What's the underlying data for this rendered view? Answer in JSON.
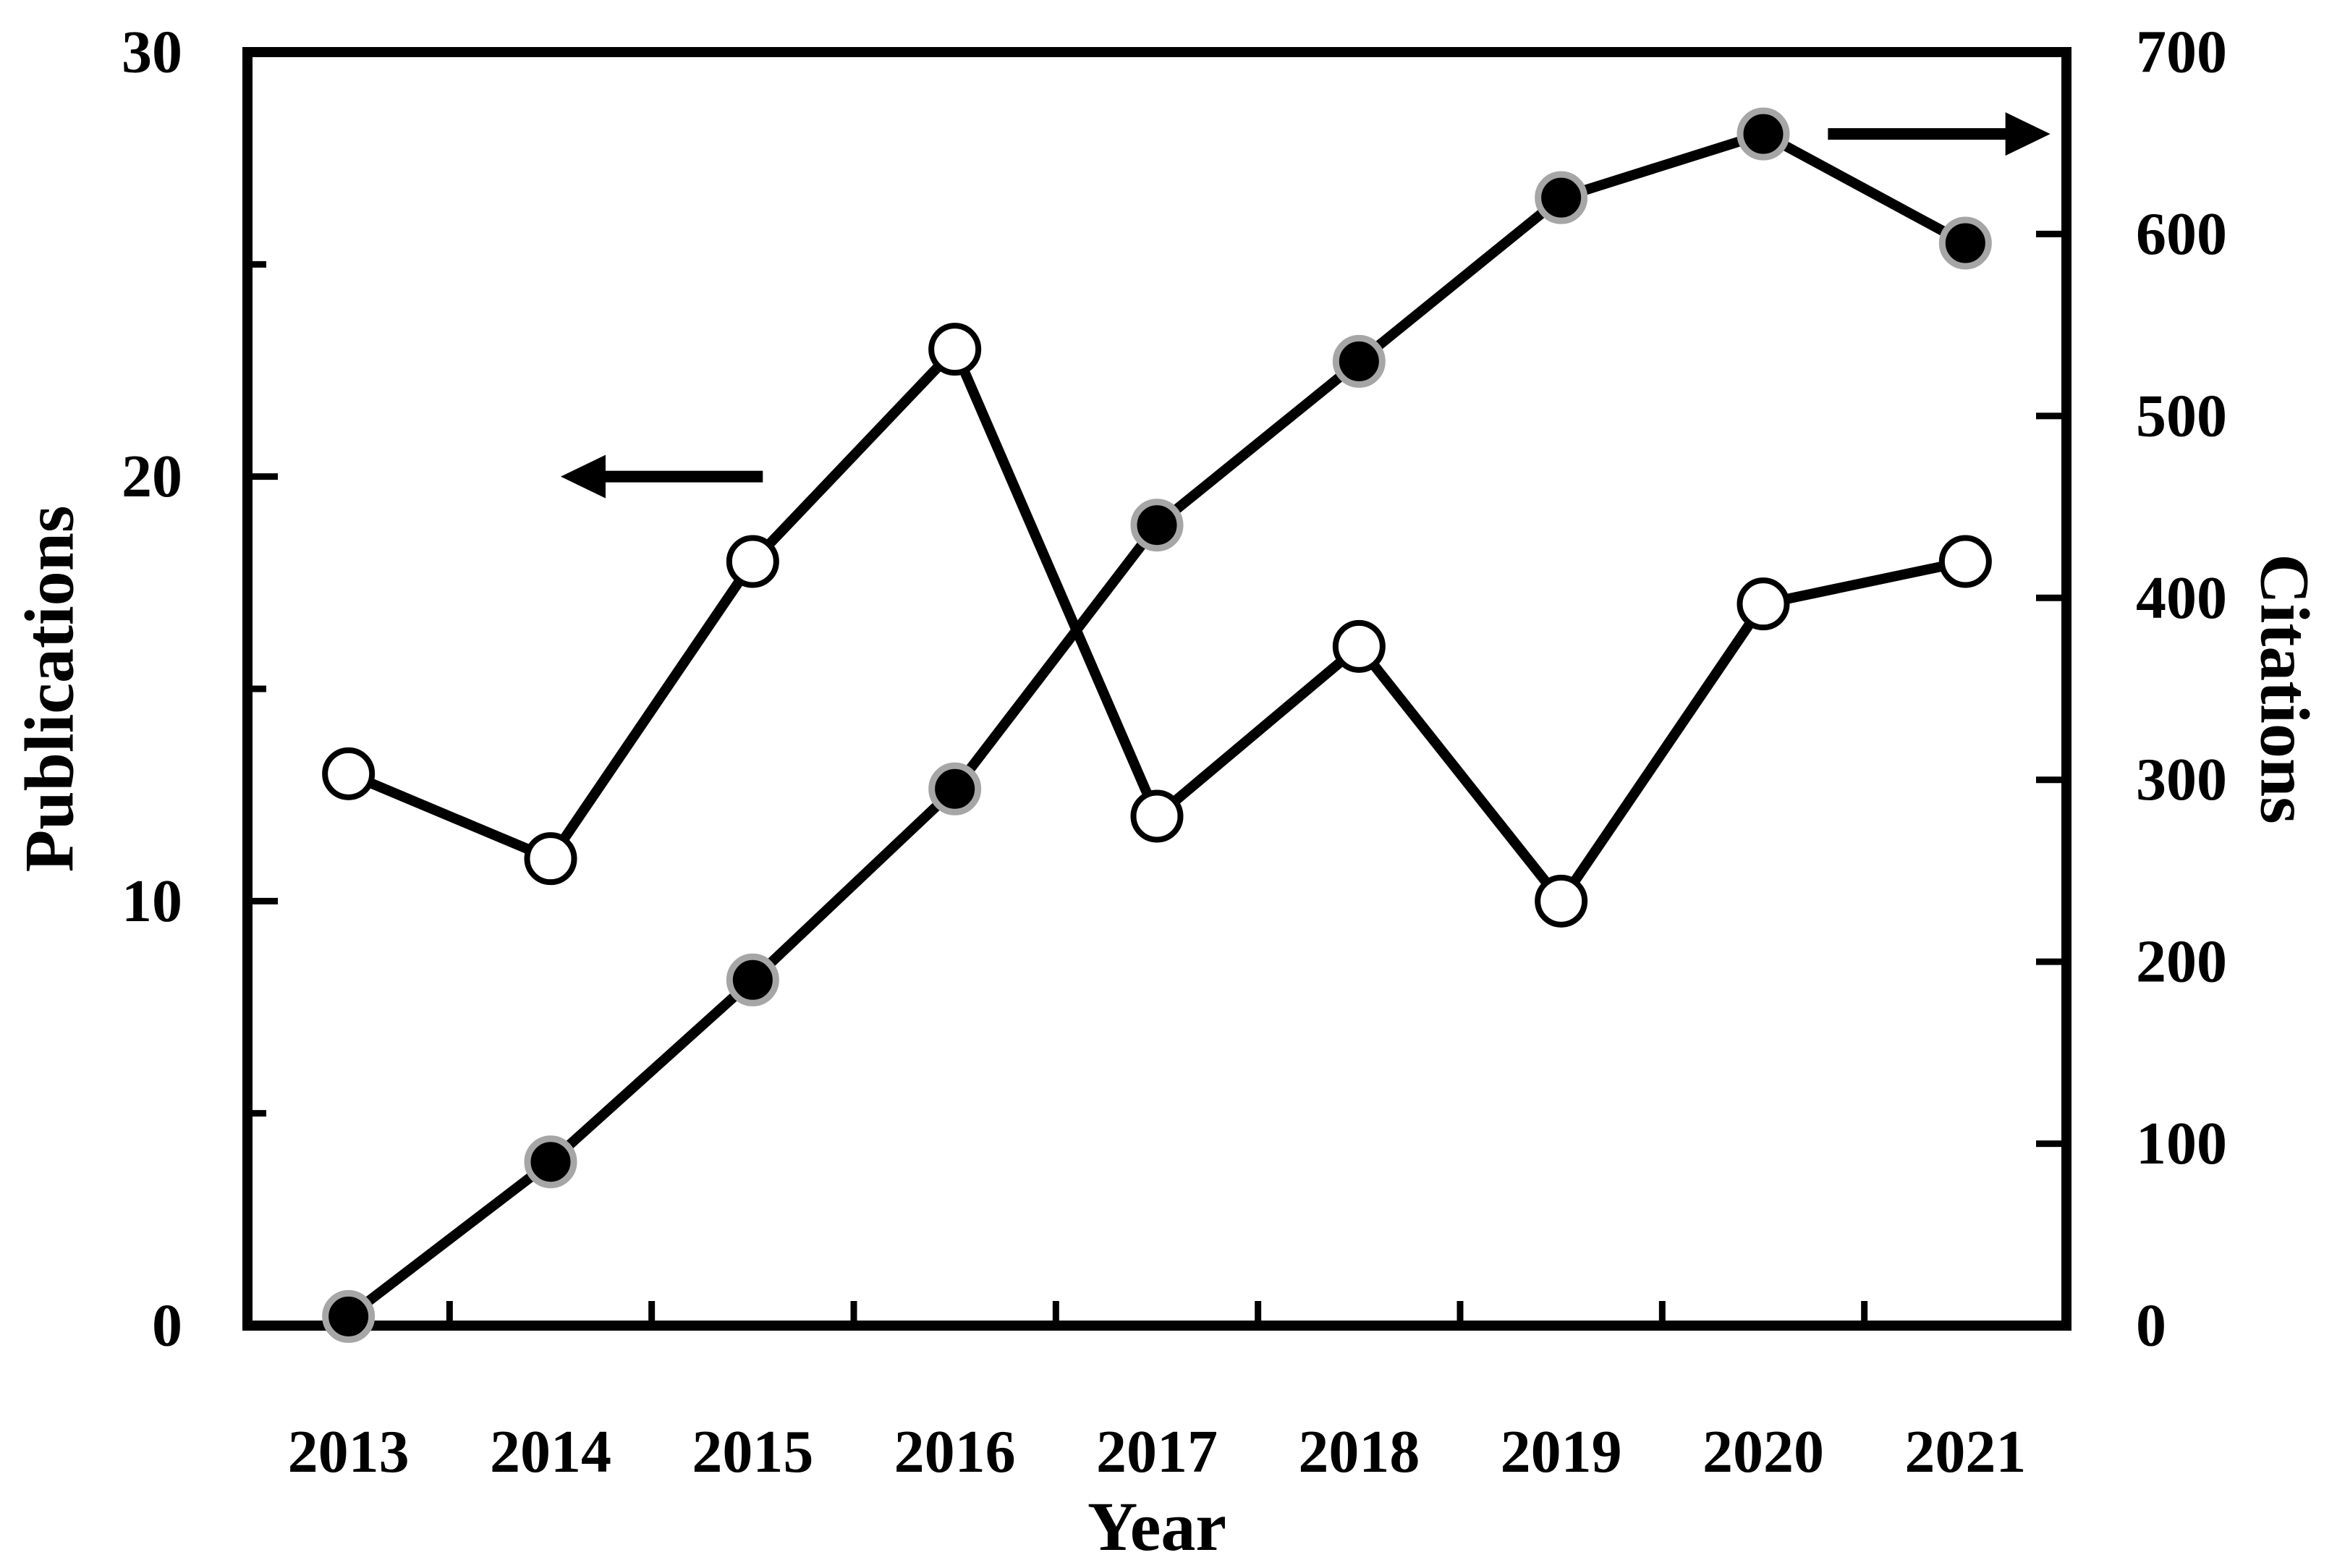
{
  "figure": {
    "background": "#ffffff",
    "foreground": "#000000",
    "marker_ring_gray": "#a6a6a6"
  },
  "chart_data": {
    "type": "line",
    "title": "",
    "x": [
      2013,
      2014,
      2015,
      2016,
      2017,
      2018,
      2019,
      2020,
      2021
    ],
    "xlabel": "Year",
    "series": [
      {
        "name": "Publications",
        "axis": "left",
        "marker": "open-circle",
        "line_color": "#000000",
        "marker_fill": "#ffffff",
        "marker_stroke": "#000000",
        "values": [
          13,
          11,
          18,
          23,
          12,
          16,
          10,
          17,
          18
        ]
      },
      {
        "name": "Citations",
        "axis": "right",
        "marker": "filled-circle",
        "line_color": "#000000",
        "marker_fill": "#000000",
        "marker_stroke": "#a6a6a6",
        "values": [
          5,
          90,
          190,
          295,
          440,
          530,
          620,
          655,
          595
        ]
      }
    ],
    "axes": {
      "left": {
        "label": "Publications",
        "min": 0,
        "max": 30,
        "tick_labels": [
          0,
          10,
          20,
          30
        ],
        "minor_step": 5
      },
      "right": {
        "label": "Citations",
        "min": 0,
        "max": 700,
        "tick_labels": [
          0,
          100,
          200,
          300,
          400,
          500,
          600,
          700
        ]
      },
      "x": {
        "label": "Year",
        "tick_position": "between-categories"
      }
    },
    "grid": false,
    "legend": "none",
    "annotations": [
      {
        "type": "arrow",
        "points_to": "left-axis",
        "axis": "left",
        "y": 20,
        "x_tail": 2015.05,
        "x_tip": 2014.05
      },
      {
        "type": "arrow",
        "points_to": "right-axis",
        "axis": "right",
        "y": 655,
        "x_tail": 2020.32,
        "x_tip": 2021.42
      }
    ]
  }
}
